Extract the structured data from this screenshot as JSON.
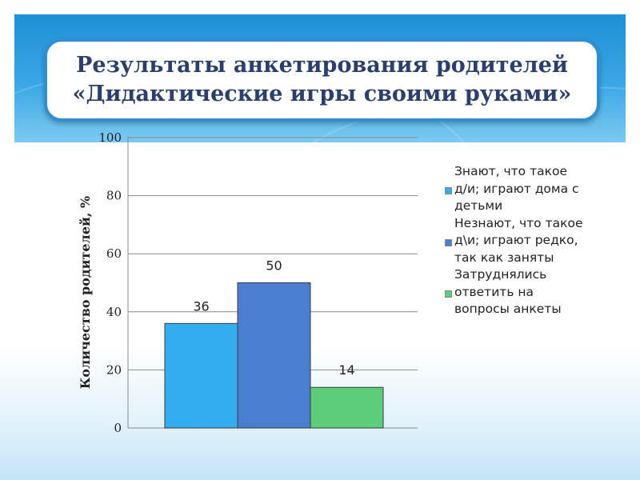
{
  "title": {
    "line1": "Результаты анкетирования родителей",
    "line2": "«Дидактические игры своими руками»"
  },
  "chart_data": {
    "type": "bar",
    "ylabel": "Количество родителей, %",
    "ylim": [
      0,
      100
    ],
    "yticks": [
      0,
      20,
      40,
      60,
      80,
      100
    ],
    "grid": true,
    "legend_position": "right",
    "series": [
      {
        "name": "Знают, что такое д/и; играют дома с детьми",
        "label_lines": [
          "Знают, что такое",
          "д/и; играют дома с",
          "детьми"
        ],
        "value": 36,
        "color": "#33adf0"
      },
      {
        "name": "Незнают, что такое д\\и; играют редко, так как заняты",
        "label_lines": [
          "Незнают, что такое",
          "д\\и; играют редко,",
          "так как заняты"
        ],
        "value": 50,
        "color": "#4a7fd0"
      },
      {
        "name": "Затруднялись ответить на вопросы анкеты",
        "label_lines": [
          "Затруднялись",
          "ответить на",
          "вопросы анкеты"
        ],
        "value": 14,
        "color": "#5ccd78"
      }
    ]
  }
}
